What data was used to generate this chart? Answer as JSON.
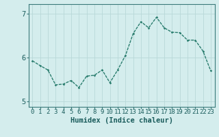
{
  "x": [
    0,
    1,
    2,
    3,
    4,
    5,
    6,
    7,
    8,
    9,
    10,
    11,
    12,
    13,
    14,
    15,
    16,
    17,
    18,
    19,
    20,
    21,
    22,
    23
  ],
  "y": [
    5.93,
    5.82,
    5.72,
    5.38,
    5.4,
    5.48,
    5.32,
    5.58,
    5.6,
    5.72,
    5.43,
    5.72,
    6.05,
    6.55,
    6.82,
    6.68,
    6.92,
    6.68,
    6.58,
    6.57,
    6.4,
    6.4,
    6.15,
    5.7
  ],
  "ylim": [
    4.88,
    7.22
  ],
  "yticks": [
    5,
    6,
    7
  ],
  "xticks": [
    0,
    1,
    2,
    3,
    4,
    5,
    6,
    7,
    8,
    9,
    10,
    11,
    12,
    13,
    14,
    15,
    16,
    17,
    18,
    19,
    20,
    21,
    22,
    23
  ],
  "xlabel": "Humidex (Indice chaleur)",
  "line_color": "#2a7d6e",
  "marker_color": "#2a7d6e",
  "bg_color": "#d4eded",
  "grid_color": "#b8d8d8",
  "axis_color": "#555555",
  "marker": "D",
  "markersize": 1.8,
  "linewidth": 1.0,
  "xlabel_fontsize": 7.5,
  "tick_fontsize": 6.5,
  "ytick_fontsize": 7.5
}
